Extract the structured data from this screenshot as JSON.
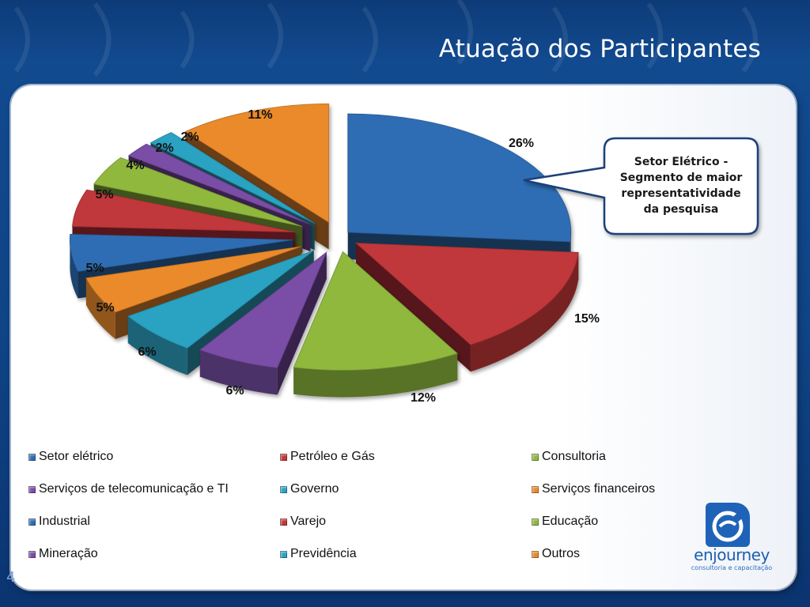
{
  "slide": {
    "title": "Atuação dos Participantes",
    "page_number": "4"
  },
  "callout": {
    "text": "Setor Elétrico - Segmento de maior representatividade da pesquisa"
  },
  "logo": {
    "name": "enjourney",
    "tagline": "consultoria e capacitação"
  },
  "chart_data": {
    "type": "pie",
    "style": "3d-exploded",
    "title": "",
    "legend_position": "bottom",
    "categories": [
      "Setor elétrico",
      "Petróleo e Gás",
      "Consultoria",
      "Serviços de telecomunicação e TI",
      "Governo",
      "Serviços financeiros",
      "Industrial",
      "Varejo",
      "Educação",
      "Mineração",
      "Previdência",
      "Outros"
    ],
    "values": [
      26,
      15,
      12,
      6,
      6,
      5,
      5,
      5,
      4,
      2,
      2,
      11
    ],
    "data_labels": [
      "26%",
      "15%",
      "12%",
      "6%",
      "6%",
      "5%",
      "5%",
      "5%",
      "4%",
      "2%",
      "2%",
      "11%"
    ],
    "colors": [
      "#2f6db4",
      "#c0383a",
      "#8fb83e",
      "#7a4ea6",
      "#2ba2c2",
      "#ea8a2b",
      "#2f6db4",
      "#c0383a",
      "#8fb83e",
      "#7a4ea6",
      "#2ba2c2",
      "#ea8a2b"
    ]
  }
}
